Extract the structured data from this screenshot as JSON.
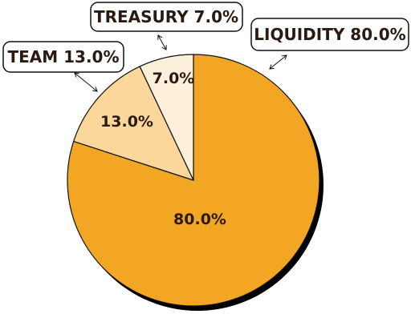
{
  "chart_data": {
    "type": "pie",
    "title": "",
    "slices": [
      {
        "label": "Liquidity",
        "value": 80.0,
        "value_label": "80.0%",
        "callout": "LIQUIDITY 80.0%",
        "color": "#f2a623"
      },
      {
        "label": "Team",
        "value": 13.0,
        "value_label": "13.0%",
        "callout": "TEAM 13.0%",
        "color": "#fbd79c"
      },
      {
        "label": "Treasury",
        "value": 7.0,
        "value_label": "7.0%",
        "callout": "TREASURY 7.0%",
        "color": "#fdf0da"
      }
    ],
    "start_angle": "top",
    "direction": "clockwise",
    "legend": "callouts"
  },
  "colors": {
    "outline": "#111111",
    "shadow": "#000000",
    "text": "#2a1a10"
  }
}
